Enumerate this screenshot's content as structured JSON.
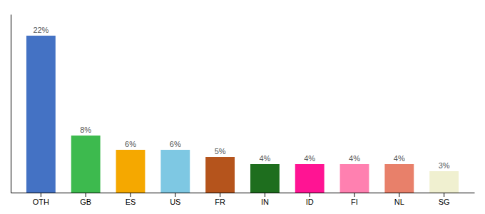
{
  "chart_data": {
    "type": "bar",
    "categories": [
      "OTH",
      "GB",
      "ES",
      "US",
      "FR",
      "IN",
      "ID",
      "FI",
      "NL",
      "SG"
    ],
    "values": [
      22,
      8,
      6,
      6,
      5,
      4,
      4,
      4,
      4,
      3
    ],
    "value_labels": [
      "22%",
      "8%",
      "6%",
      "6%",
      "5%",
      "4%",
      "4%",
      "4%",
      "4%",
      "3%"
    ],
    "colors": [
      "#4472c4",
      "#3dba4e",
      "#f5a800",
      "#7ec8e3",
      "#b5541c",
      "#1e6e1e",
      "#ff1493",
      "#ff80b0",
      "#e8806a",
      "#f0f0d0"
    ],
    "ylim": [
      0,
      25
    ],
    "grid": false,
    "data_labels": true,
    "tick_labels": "x"
  }
}
